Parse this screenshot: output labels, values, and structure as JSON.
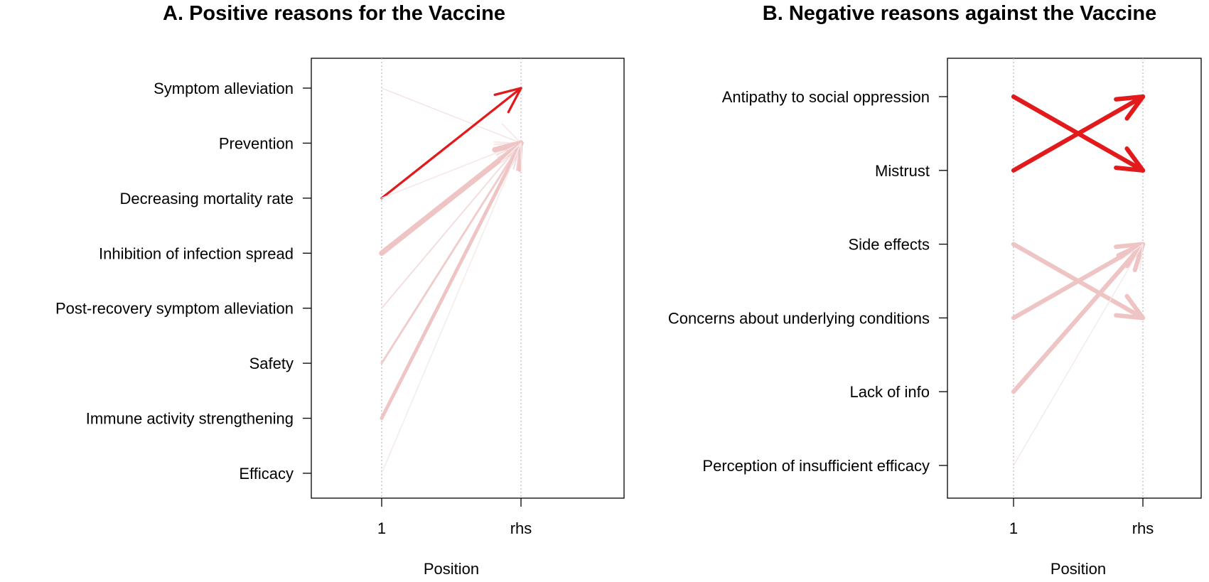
{
  "chart_data": [
    {
      "type": "diagram",
      "title": "A. Positive reasons for the Vaccine",
      "xlabel": "Position",
      "x_ticks": [
        "1",
        "rhs"
      ],
      "categories": [
        "Symptom alleviation",
        "Prevention",
        "Decreasing mortality rate",
        "Inhibition of infection spread",
        "Post-recovery symptom alleviation",
        "Safety",
        "Immune activity strengthening",
        "Efficacy"
      ],
      "arrows": [
        {
          "from": "Symptom alleviation",
          "to": "Prevention",
          "weight": 0.05,
          "color": "#f4e2e2"
        },
        {
          "from": "Decreasing mortality rate",
          "to": "Symptom alleviation",
          "weight": 0.35,
          "color": "#e31a1c"
        },
        {
          "from": "Decreasing mortality rate",
          "to": "Prevention",
          "weight": 0.1,
          "color": "#f6e8e8"
        },
        {
          "from": "Inhibition of infection spread",
          "to": "Prevention",
          "weight": 1.0,
          "color": "#efc4c4"
        },
        {
          "from": "Post-recovery symptom alleviation",
          "to": "Prevention",
          "weight": 0.15,
          "color": "#f3dede"
        },
        {
          "from": "Safety",
          "to": "Prevention",
          "weight": 0.3,
          "color": "#f0cccc"
        },
        {
          "from": "Immune activity strengthening",
          "to": "Prevention",
          "weight": 0.6,
          "color": "#efc4c4"
        },
        {
          "from": "Efficacy",
          "to": "Prevention",
          "weight": 0.1,
          "color": "#f6ecec"
        }
      ]
    },
    {
      "type": "diagram",
      "title": "B. Negative reasons against  the Vaccine",
      "xlabel": "Position",
      "x_ticks": [
        "1",
        "rhs"
      ],
      "categories": [
        "Antipathy to social oppression",
        "Mistrust",
        "Side effects",
        "Concerns about underlying conditions",
        "Lack of info",
        "Perception of insufficient efficacy"
      ],
      "arrows": [
        {
          "from": "Antipathy to social oppression",
          "to": "Mistrust",
          "weight": 0.8,
          "color": "#e31a1c"
        },
        {
          "from": "Mistrust",
          "to": "Antipathy to social oppression",
          "weight": 0.8,
          "color": "#e31a1c"
        },
        {
          "from": "Side effects",
          "to": "Concerns about underlying conditions",
          "weight": 0.8,
          "color": "#efc4c4"
        },
        {
          "from": "Concerns about underlying conditions",
          "to": "Side effects",
          "weight": 0.8,
          "color": "#efc4c4"
        },
        {
          "from": "Lack of info",
          "to": "Side effects",
          "weight": 0.8,
          "color": "#efc4c4"
        },
        {
          "from": "Perception of insufficient efficacy",
          "to": "Side effects",
          "weight": 0.05,
          "color": "#f4e8e8"
        }
      ]
    }
  ]
}
